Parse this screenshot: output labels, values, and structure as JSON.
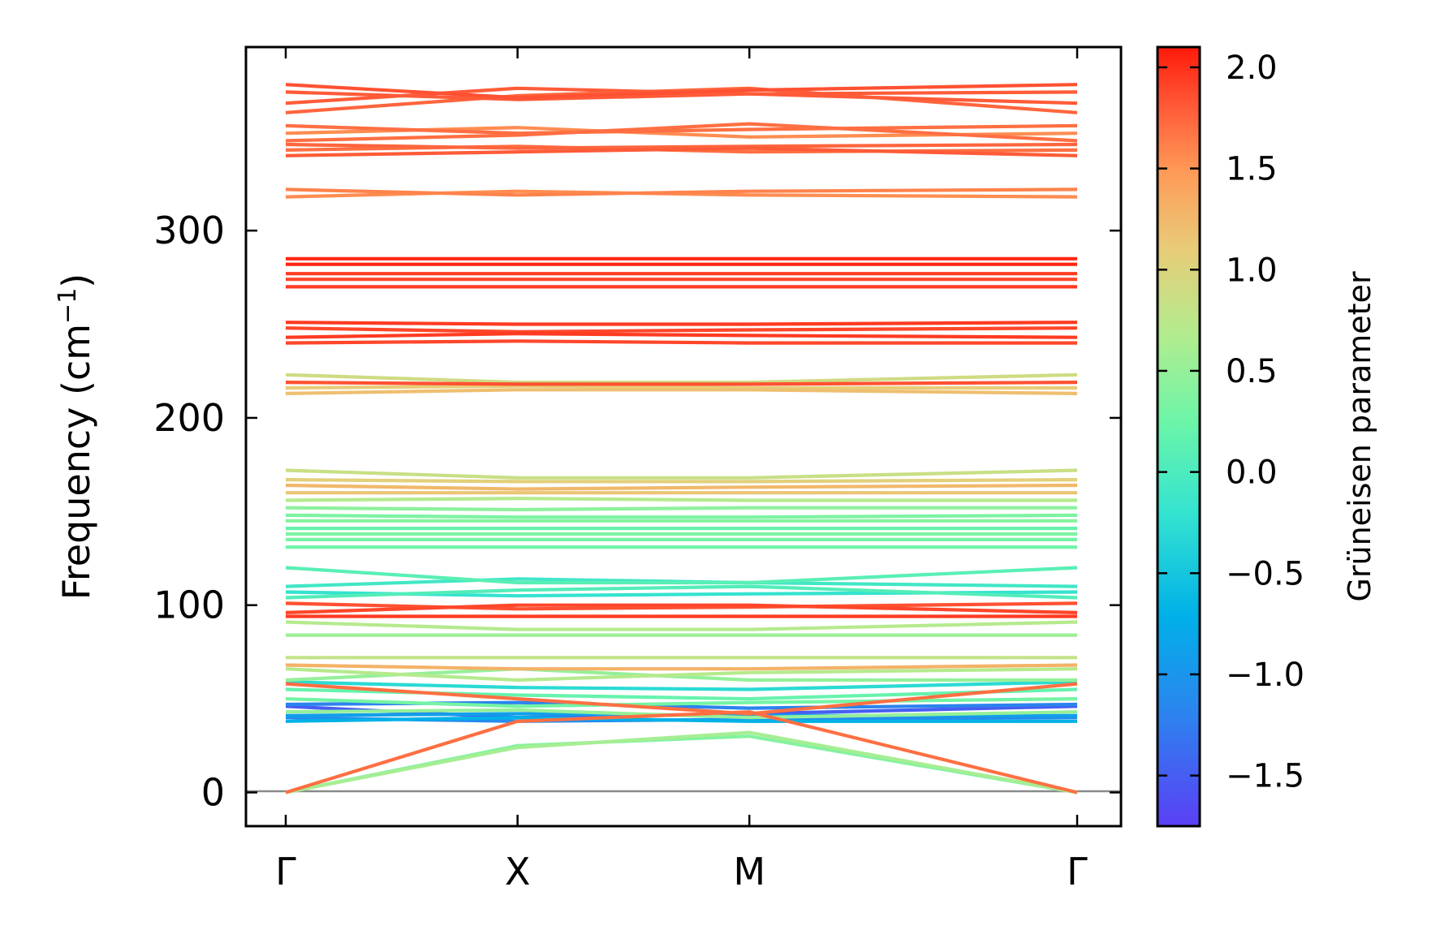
{
  "chart_data": {
    "type": "line",
    "title": "",
    "xlabel": "",
    "ylabel": "Frequency (cm",
    "ylabel_sup": "−1",
    "ylabel_close": ")",
    "ylim": [
      -18,
      398
    ],
    "yticks": [
      0,
      100,
      200,
      300
    ],
    "ytick_labels": [
      "0",
      "100",
      "200",
      "300"
    ],
    "grid": false,
    "kpath": [
      {
        "label": "Γ",
        "pos": 0.0
      },
      {
        "label": "X",
        "pos": 1.0
      },
      {
        "label": "M",
        "pos": 2.0
      },
      {
        "label": "Γ",
        "pos": 3.414
      }
    ],
    "zero_line": 0,
    "colorbar": {
      "title": "Grüneisen parameter",
      "range": [
        -1.75,
        2.1
      ],
      "ticks": [
        2.0,
        1.5,
        1.0,
        0.5,
        0.0,
        -0.5,
        -1.0,
        -1.5
      ],
      "tick_labels": [
        "2.0",
        "1.5",
        "1.0",
        "0.5",
        "0.0",
        "−0.5",
        "−1.0",
        "−1.5"
      ],
      "colormap": "rainbow"
    },
    "series": [
      {
        "values": [
          378,
          371,
          375,
          378
        ],
        "gamma": 1.85
      },
      {
        "values": [
          374,
          370,
          373,
          374
        ],
        "gamma": 1.8
      },
      {
        "values": [
          368,
          376,
          373,
          368
        ],
        "gamma": 1.8
      },
      {
        "values": [
          363,
          372,
          376,
          363
        ],
        "gamma": 1.75
      },
      {
        "values": [
          356,
          352,
          354,
          356
        ],
        "gamma": 1.7
      },
      {
        "values": [
          352,
          355,
          350,
          352
        ],
        "gamma": 1.55
      },
      {
        "values": [
          348,
          351,
          357,
          348
        ],
        "gamma": 1.7
      },
      {
        "values": [
          346,
          344,
          345,
          346
        ],
        "gamma": 1.75
      },
      {
        "values": [
          343,
          345,
          342,
          343
        ],
        "gamma": 1.7
      },
      {
        "values": [
          340,
          342,
          344,
          340
        ],
        "gamma": 1.8
      },
      {
        "values": [
          322,
          319,
          321,
          322
        ],
        "gamma": 1.6
      },
      {
        "values": [
          318,
          321,
          319,
          318
        ],
        "gamma": 1.55
      },
      {
        "values": [
          285,
          285,
          285,
          285
        ],
        "gamma": 2.05
      },
      {
        "values": [
          282,
          282,
          282,
          282
        ],
        "gamma": 2.05
      },
      {
        "values": [
          277,
          277,
          277,
          277
        ],
        "gamma": 1.95
      },
      {
        "values": [
          274,
          274,
          274,
          274
        ],
        "gamma": 1.9
      },
      {
        "values": [
          270,
          270,
          270,
          270
        ],
        "gamma": 1.95
      },
      {
        "values": [
          251,
          250,
          250,
          251
        ],
        "gamma": 1.95
      },
      {
        "values": [
          248,
          246,
          247,
          248
        ],
        "gamma": 1.9
      },
      {
        "values": [
          243,
          245,
          244,
          243
        ],
        "gamma": 1.95
      },
      {
        "values": [
          240,
          241,
          240,
          240
        ],
        "gamma": 1.9
      },
      {
        "values": [
          223,
          219,
          219,
          223
        ],
        "gamma": 0.9
      },
      {
        "values": [
          219,
          218,
          218,
          219
        ],
        "gamma": 1.85
      },
      {
        "values": [
          216,
          217,
          216,
          216
        ],
        "gamma": 1.1
      },
      {
        "values": [
          213,
          215,
          215,
          213
        ],
        "gamma": 1.2
      },
      {
        "values": [
          172,
          168,
          168,
          172
        ],
        "gamma": 0.85
      },
      {
        "values": [
          167,
          166,
          166,
          167
        ],
        "gamma": 1.05
      },
      {
        "values": [
          164,
          162,
          163,
          164
        ],
        "gamma": 1.25
      },
      {
        "values": [
          160,
          160,
          160,
          160
        ],
        "gamma": 1.15
      },
      {
        "values": [
          156,
          157,
          156,
          156
        ],
        "gamma": 0.7
      },
      {
        "values": [
          152,
          151,
          152,
          152
        ],
        "gamma": 0.45
      },
      {
        "values": [
          148,
          147,
          147,
          148
        ],
        "gamma": 0.35
      },
      {
        "values": [
          145,
          145,
          145,
          145
        ],
        "gamma": 0.4
      },
      {
        "values": [
          141,
          141,
          141,
          141
        ],
        "gamma": 0.2
      },
      {
        "values": [
          138,
          138,
          138,
          138
        ],
        "gamma": 0.35
      },
      {
        "values": [
          135,
          135,
          135,
          135
        ],
        "gamma": 0.3
      },
      {
        "values": [
          131,
          131,
          131,
          131
        ],
        "gamma": 0.25
      },
      {
        "values": [
          120,
          112,
          112,
          120
        ],
        "gamma": 0.1
      },
      {
        "values": [
          110,
          114,
          112,
          110
        ],
        "gamma": -0.1
      },
      {
        "values": [
          107,
          105,
          106,
          107
        ],
        "gamma": -0.2
      },
      {
        "values": [
          104,
          108,
          110,
          104
        ],
        "gamma": 0.05
      },
      {
        "values": [
          101,
          98,
          99,
          101
        ],
        "gamma": 1.85
      },
      {
        "values": [
          96,
          100,
          100,
          96
        ],
        "gamma": 1.9
      },
      {
        "values": [
          94,
          94,
          94,
          94
        ],
        "gamma": 1.95
      },
      {
        "values": [
          91,
          87,
          87,
          91
        ],
        "gamma": 0.7
      },
      {
        "values": [
          84,
          84,
          84,
          84
        ],
        "gamma": 0.55
      },
      {
        "values": [
          72,
          72,
          72,
          72
        ],
        "gamma": 0.8
      },
      {
        "values": [
          68,
          66,
          66,
          68
        ],
        "gamma": 1.3
      },
      {
        "values": [
          66,
          60,
          64,
          66
        ],
        "gamma": 0.7
      },
      {
        "values": [
          60,
          66,
          60,
          60
        ],
        "gamma": 0.5
      },
      {
        "values": [
          59,
          56,
          55,
          59
        ],
        "gamma": -0.3
      },
      {
        "values": [
          58,
          50,
          42,
          58
        ],
        "gamma": 1.7
      },
      {
        "values": [
          55,
          52,
          50,
          55
        ],
        "gamma": 0.2
      },
      {
        "values": [
          50,
          46,
          48,
          50
        ],
        "gamma": 0.3
      },
      {
        "values": [
          47,
          48,
          45,
          47
        ],
        "gamma": -1.2
      },
      {
        "values": [
          46,
          40,
          42,
          46
        ],
        "gamma": -1.5
      },
      {
        "values": [
          43,
          44,
          40,
          43
        ],
        "gamma": 0.5
      },
      {
        "values": [
          41,
          42,
          41,
          41
        ],
        "gamma": -0.9
      },
      {
        "values": [
          40,
          38,
          39,
          40
        ],
        "gamma": -1.1
      },
      {
        "values": [
          38,
          40,
          38,
          38
        ],
        "gamma": -0.7
      },
      {
        "values": [
          0,
          38,
          43,
          0
        ],
        "gamma": 1.7
      },
      {
        "values": [
          0,
          24,
          32,
          0
        ],
        "gamma": 0.6
      },
      {
        "values": [
          0,
          25,
          30,
          0
        ],
        "gamma": 0.4
      }
    ]
  }
}
